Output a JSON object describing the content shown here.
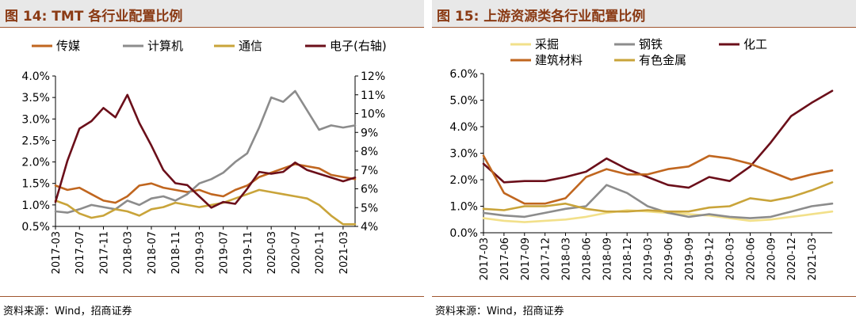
{
  "left": {
    "title": "图 14:  TMT 各行业配置比例",
    "source": "资料来源：Wind，招商证券",
    "chart_data": {
      "type": "line",
      "title": "图 14:  TMT 各行业配置比例",
      "x": [
        "2017-03",
        "2017-05",
        "2017-07",
        "2017-09",
        "2017-11",
        "2018-01",
        "2018-03",
        "2018-05",
        "2018-07",
        "2018-09",
        "2018-11",
        "2019-01",
        "2019-03",
        "2019-05",
        "2019-07",
        "2019-09",
        "2019-11",
        "2020-01",
        "2020-03",
        "2020-05",
        "2020-07",
        "2020-09",
        "2020-11",
        "2021-01",
        "2021-03",
        "2021-05"
      ],
      "xticks": [
        "2017-03",
        "2017-07",
        "2017-11",
        "2018-03",
        "2018-07",
        "2018-11",
        "2019-03",
        "2019-07",
        "2019-11",
        "2020-03",
        "2020-07",
        "2020-11",
        "2021-03"
      ],
      "ylim": [
        0.5,
        4.0
      ],
      "yticks": [
        "0.5%",
        "1.0%",
        "1.5%",
        "2.0%",
        "2.5%",
        "3.0%",
        "3.5%",
        "4.0%"
      ],
      "y2lim": [
        4,
        12
      ],
      "y2ticks": [
        "4%",
        "5%",
        "6%",
        "7%",
        "8%",
        "9%",
        "10%",
        "11%",
        "12%"
      ],
      "legend_position": "top",
      "series": [
        {
          "name": "传媒",
          "color": "#c0661f",
          "axis": "left",
          "values": [
            1.45,
            1.35,
            1.4,
            1.25,
            1.1,
            1.05,
            1.2,
            1.45,
            1.5,
            1.4,
            1.35,
            1.3,
            1.35,
            1.25,
            1.2,
            1.35,
            1.45,
            1.65,
            1.75,
            1.85,
            1.95,
            1.9,
            1.85,
            1.7,
            1.65,
            1.6
          ]
        },
        {
          "name": "计算机",
          "color": "#8c8c8c",
          "axis": "left",
          "values": [
            0.85,
            0.82,
            0.9,
            1.0,
            0.95,
            0.9,
            1.1,
            1.0,
            1.15,
            1.2,
            1.1,
            1.25,
            1.5,
            1.6,
            1.75,
            2.0,
            2.2,
            2.8,
            3.5,
            3.4,
            3.65,
            3.2,
            2.75,
            2.85,
            2.8,
            2.85
          ]
        },
        {
          "name": "通信",
          "color": "#c9a43a",
          "axis": "left",
          "values": [
            1.1,
            1.0,
            0.8,
            0.7,
            0.75,
            0.9,
            0.85,
            0.75,
            0.9,
            0.95,
            1.05,
            1.0,
            0.95,
            1.0,
            1.05,
            1.15,
            1.25,
            1.35,
            1.3,
            1.25,
            1.2,
            1.15,
            1.0,
            0.75,
            0.55,
            0.55
          ]
        },
        {
          "name": "电子(右轴)",
          "color": "#6b0f1a",
          "axis": "right",
          "values": [
            5.3,
            7.5,
            9.2,
            9.6,
            10.3,
            9.8,
            11.0,
            9.5,
            8.3,
            7.0,
            6.3,
            6.2,
            5.6,
            5.0,
            5.3,
            5.2,
            6.0,
            6.9,
            6.8,
            6.9,
            7.4,
            7.0,
            6.8,
            6.6,
            6.4,
            6.6
          ]
        }
      ]
    }
  },
  "right": {
    "title": "图 15:  上游资源类各行业配置比例",
    "source": "资料来源：Wind，招商证券",
    "chart_data": {
      "type": "line",
      "title": "图 15:  上游资源类各行业配置比例",
      "x": [
        "2017-03",
        "2017-06",
        "2017-09",
        "2017-12",
        "2018-03",
        "2018-06",
        "2018-09",
        "2018-12",
        "2019-03",
        "2019-06",
        "2019-09",
        "2019-12",
        "2020-03",
        "2020-06",
        "2020-09",
        "2020-12",
        "2021-03",
        "2021-05"
      ],
      "xticks": [
        "2017-03",
        "2017-06",
        "2017-09",
        "2017-12",
        "2018-03",
        "2018-06",
        "2018-09",
        "2018-12",
        "2019-03",
        "2019-06",
        "2019-09",
        "2019-12",
        "2020-03",
        "2020-06",
        "2020-09",
        "2020-12",
        "2021-03"
      ],
      "ylim": [
        0,
        6.0
      ],
      "yticks": [
        "0.0%",
        "1.0%",
        "2.0%",
        "3.0%",
        "4.0%",
        "5.0%",
        "6.0%"
      ],
      "legend_position": "top",
      "series": [
        {
          "name": "采掘",
          "color": "#f2e08a",
          "values": [
            0.55,
            0.45,
            0.4,
            0.45,
            0.5,
            0.6,
            0.75,
            0.85,
            0.8,
            0.75,
            0.7,
            0.65,
            0.55,
            0.45,
            0.5,
            0.6,
            0.7,
            0.8
          ]
        },
        {
          "name": "钢铁",
          "color": "#8c8c8c",
          "values": [
            0.75,
            0.65,
            0.6,
            0.75,
            0.9,
            1.0,
            1.8,
            1.5,
            1.0,
            0.75,
            0.6,
            0.7,
            0.6,
            0.55,
            0.6,
            0.8,
            1.0,
            1.1
          ]
        },
        {
          "name": "化工",
          "color": "#6b0f1a",
          "values": [
            2.6,
            1.9,
            1.95,
            1.95,
            2.1,
            2.3,
            2.8,
            2.4,
            2.1,
            1.8,
            1.7,
            2.1,
            1.95,
            2.5,
            3.4,
            4.4,
            4.9,
            5.35
          ]
        },
        {
          "name": "建筑材料",
          "color": "#c0661f",
          "values": [
            2.9,
            1.5,
            1.1,
            1.1,
            1.3,
            2.1,
            2.4,
            2.2,
            2.2,
            2.4,
            2.5,
            2.9,
            2.8,
            2.6,
            2.3,
            2.0,
            2.2,
            2.35
          ]
        },
        {
          "name": "有色金属",
          "color": "#c9a43a",
          "values": [
            0.9,
            0.85,
            1.0,
            1.0,
            1.1,
            0.9,
            0.8,
            0.8,
            0.85,
            0.8,
            0.8,
            0.95,
            1.0,
            1.3,
            1.2,
            1.35,
            1.6,
            1.9
          ]
        }
      ]
    }
  }
}
